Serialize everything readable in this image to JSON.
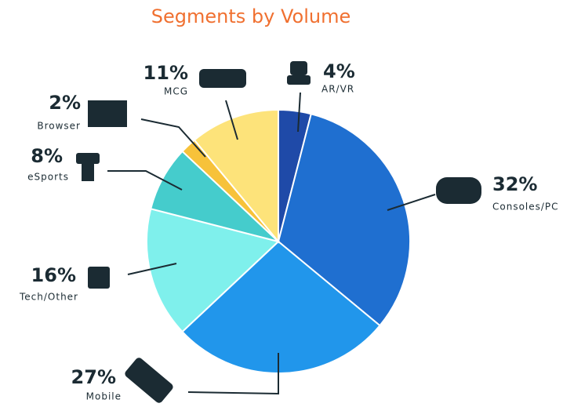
{
  "chart_data": {
    "type": "pie",
    "title": "Segments by Volume",
    "categories": [
      "AR/VR",
      "Consoles/PC",
      "Mobile",
      "Tech/Other",
      "eSports",
      "Browser",
      "MCG"
    ],
    "values": [
      4,
      32,
      27,
      16,
      8,
      2,
      11
    ],
    "value_labels": [
      "4%",
      "32%",
      "27%",
      "16%",
      "8%",
      "2%",
      "11%"
    ],
    "colors": [
      "#1f4aa8",
      "#1f6fd0",
      "#2196eb",
      "#7ff0ec",
      "#45cccc",
      "#f7c23a",
      "#fde37a"
    ]
  }
}
